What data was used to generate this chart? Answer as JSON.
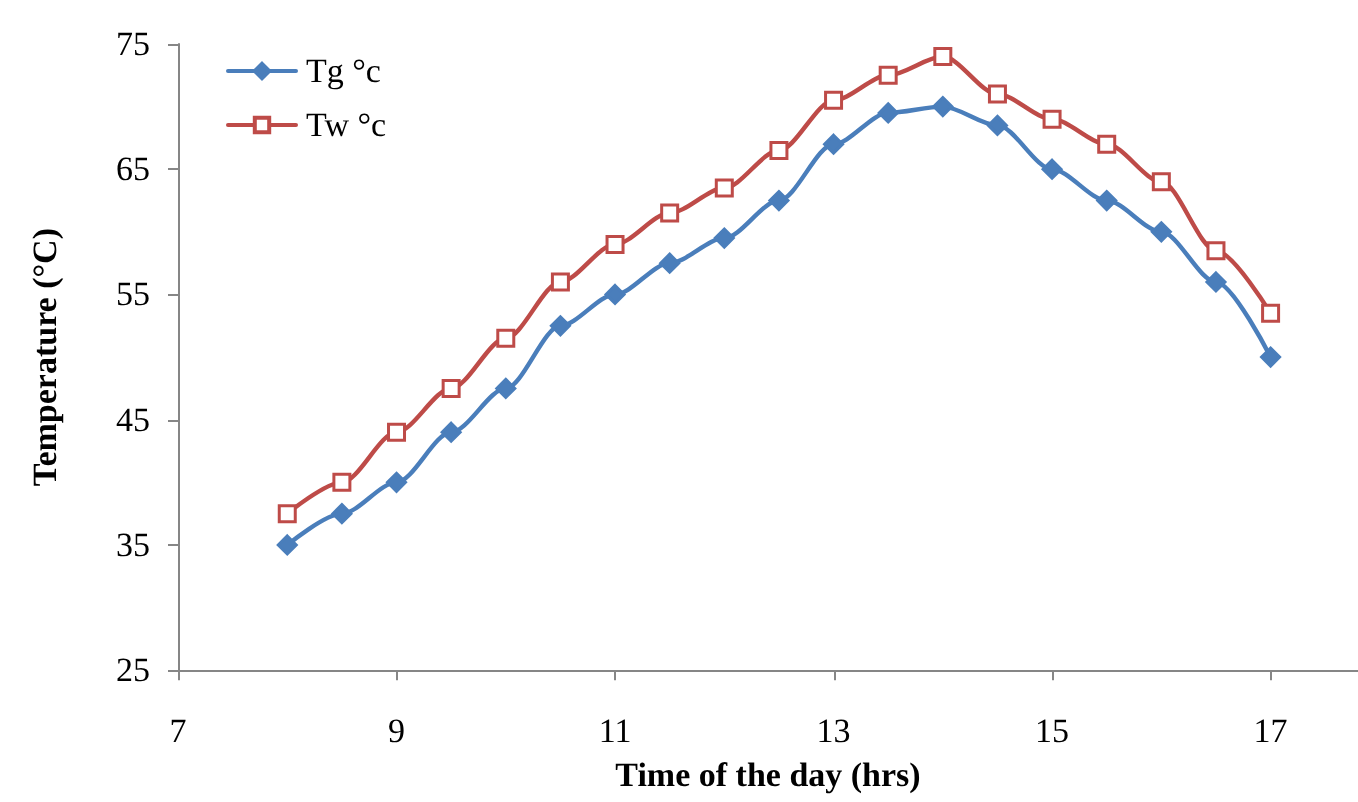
{
  "chart_data": {
    "type": "line",
    "xlabel": "Time of the day (hrs)",
    "ylabel": "Temperature (°C)",
    "x": [
      8,
      8.5,
      9,
      9.5,
      10,
      10.5,
      11,
      11.5,
      12,
      12.5,
      13,
      13.5,
      14,
      14.5,
      15,
      15.5,
      16,
      16.5,
      17
    ],
    "series": [
      {
        "name": "Tg °c",
        "color": "#4a7ebb",
        "marker": "diamond",
        "values": [
          35,
          37.5,
          40,
          44,
          47.5,
          52.5,
          55,
          57.5,
          59.5,
          62.5,
          67,
          69.5,
          70,
          68.5,
          65,
          62.5,
          60,
          56,
          50
        ]
      },
      {
        "name": "Tw °c",
        "color": "#be4b48",
        "marker": "square",
        "values": [
          37.5,
          40,
          44,
          47.5,
          51.5,
          56,
          59,
          61.5,
          63.5,
          66.5,
          70.5,
          72.5,
          74,
          71,
          69,
          67,
          64,
          58.5,
          53.5
        ]
      }
    ],
    "xlim": [
      7,
      17.8
    ],
    "xticks": [
      7,
      9,
      11,
      13,
      15,
      17
    ],
    "ylim": [
      25,
      75
    ],
    "yticks": [
      25,
      35,
      45,
      55,
      65,
      75
    ],
    "grid": false,
    "legend": "top left",
    "line_style": "solid"
  }
}
